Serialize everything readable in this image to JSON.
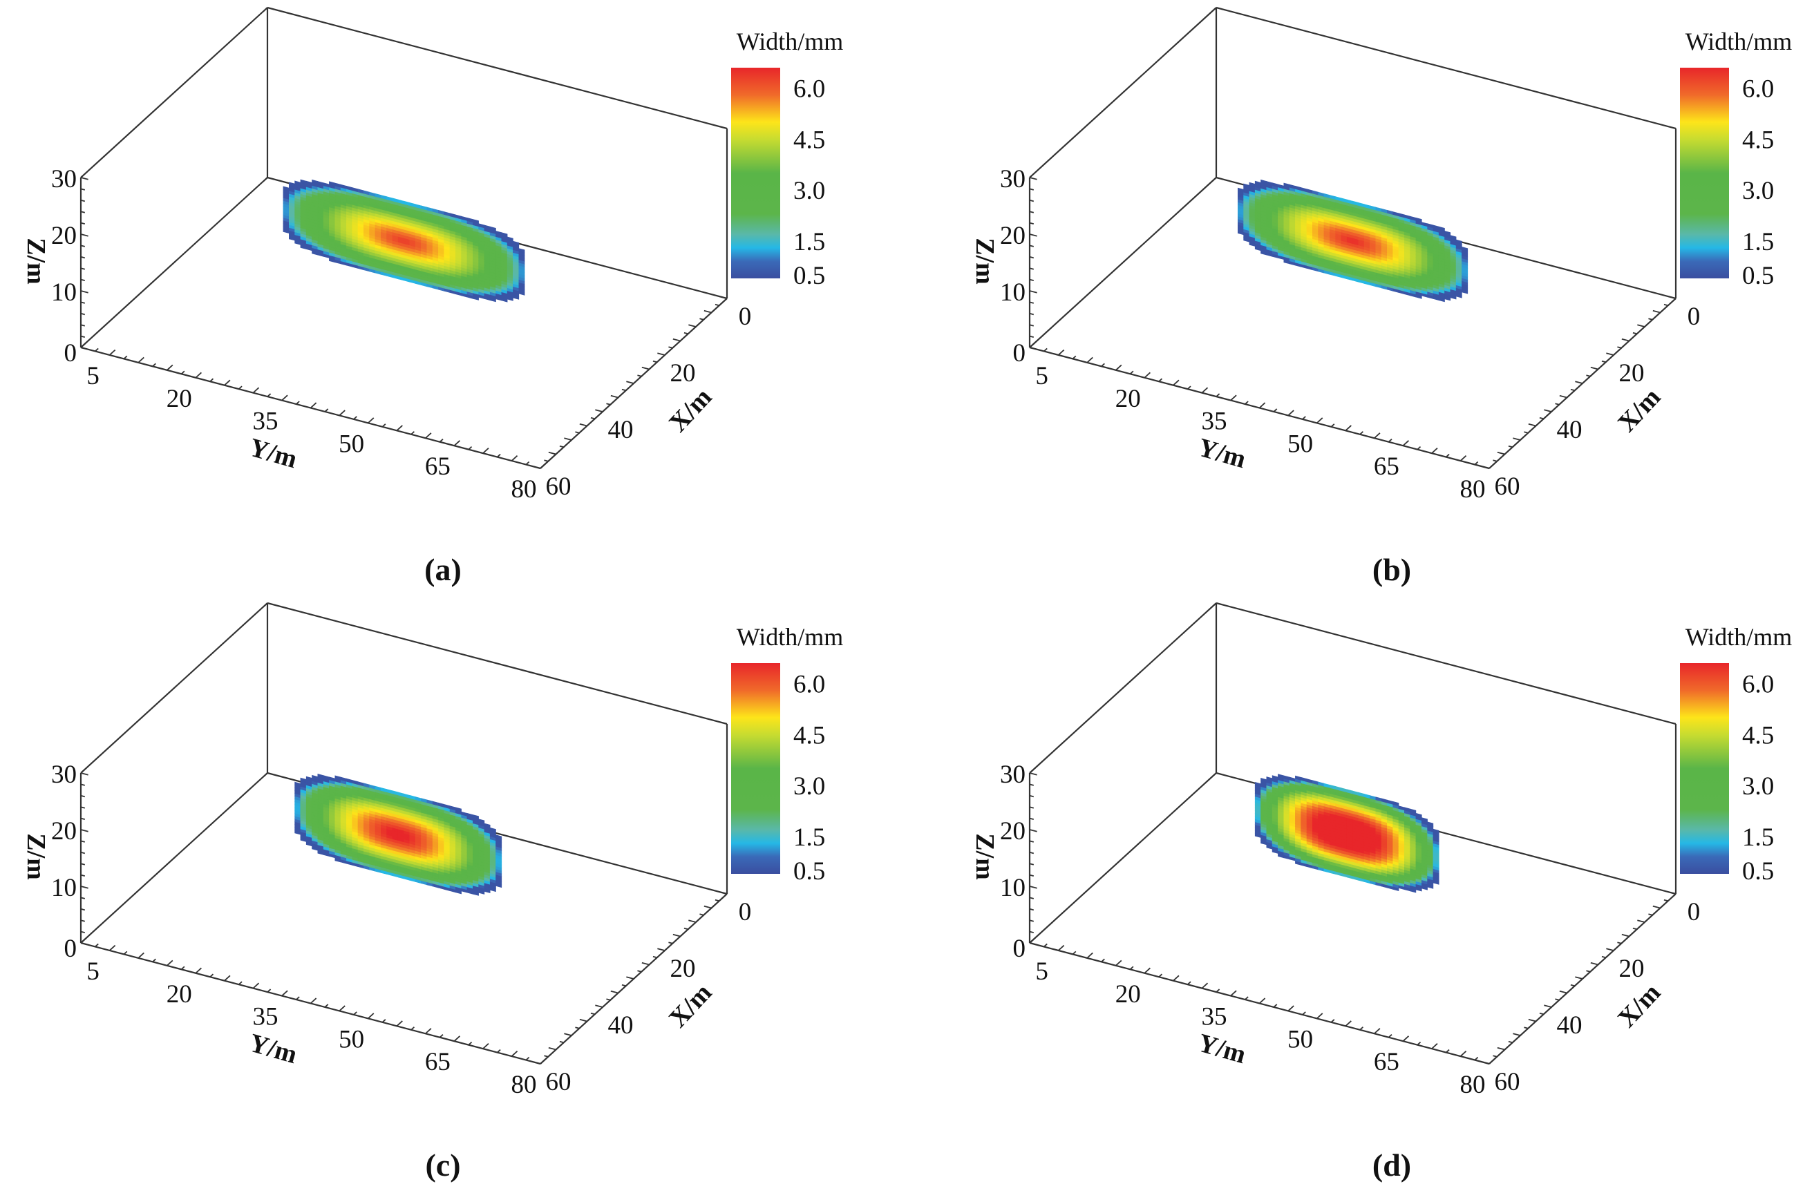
{
  "figure": {
    "colorbar": {
      "title": "Width/mm",
      "ticks": [
        "6.0",
        "4.5",
        "3.0",
        "1.5",
        "0.5"
      ],
      "tick_values": [
        6.0,
        4.5,
        3.0,
        1.5,
        0.5
      ],
      "range": [
        0.4,
        6.6
      ],
      "colormap": [
        {
          "v": 0.4,
          "c": "#3a4ea0"
        },
        {
          "v": 0.9,
          "c": "#3a6ab8"
        },
        {
          "v": 1.3,
          "c": "#25b8e6"
        },
        {
          "v": 1.7,
          "c": "#5ab8a8"
        },
        {
          "v": 2.3,
          "c": "#5cb54a"
        },
        {
          "v": 3.5,
          "c": "#5ab548"
        },
        {
          "v": 4.5,
          "c": "#c8dc30"
        },
        {
          "v": 5.0,
          "c": "#fde51a"
        },
        {
          "v": 5.8,
          "c": "#f06a2a"
        },
        {
          "v": 6.6,
          "c": "#e8262a"
        }
      ]
    },
    "axes": {
      "x_title": "X/m",
      "y_title": "Y/m",
      "z_title": "Z/m",
      "x_ticks": [
        "0",
        "20",
        "40",
        "60"
      ],
      "y_ticks": [
        "5",
        "20",
        "35",
        "50",
        "65",
        "80"
      ],
      "z_ticks": [
        "0",
        "10",
        "20",
        "30"
      ]
    }
  },
  "chart_data": [
    {
      "type": "heatmap",
      "panel": "(a)",
      "caption_letter": "a",
      "xlim": [
        0,
        60
      ],
      "ylim": [
        0,
        80
      ],
      "zlim": [
        0,
        30
      ],
      "xlabel": "X/m",
      "ylabel": "Y/m",
      "zlabel": "Z/m",
      "colorbar_label": "Width/mm",
      "fracture": {
        "x_plane": 30,
        "y_range": [
          19,
          61
        ],
        "z_range": [
          7.5,
          21.5
        ],
        "max_width": 6.4,
        "edge_width": 0.5
      }
    },
    {
      "type": "heatmap",
      "panel": "(b)",
      "caption_letter": "b",
      "xlim": [
        0,
        60
      ],
      "ylim": [
        0,
        80
      ],
      "zlim": [
        0,
        30
      ],
      "xlabel": "X/m",
      "ylabel": "Y/m",
      "zlabel": "Z/m",
      "colorbar_label": "Width/mm",
      "fracture": {
        "x_plane": 30,
        "y_range": [
          20,
          60
        ],
        "z_range": [
          7.5,
          21.5
        ],
        "max_width": 6.6,
        "edge_width": 0.5
      }
    },
    {
      "type": "heatmap",
      "panel": "(c)",
      "caption_letter": "c",
      "xlim": [
        0,
        60
      ],
      "ylim": [
        0,
        80
      ],
      "zlim": [
        0,
        30
      ],
      "xlabel": "X/m",
      "ylabel": "Y/m",
      "zlabel": "Z/m",
      "colorbar_label": "Width/mm",
      "fracture": {
        "x_plane": 30,
        "y_range": [
          21,
          57
        ],
        "z_range": [
          7,
          22
        ],
        "max_width": 7.0,
        "edge_width": 0.5
      }
    },
    {
      "type": "heatmap",
      "panel": "(d)",
      "caption_letter": "d",
      "xlim": [
        0,
        60
      ],
      "ylim": [
        0,
        80
      ],
      "zlim": [
        0,
        30
      ],
      "xlabel": "X/m",
      "ylabel": "Y/m",
      "zlabel": "Z/m",
      "colorbar_label": "Width/mm",
      "fracture": {
        "x_plane": 30,
        "y_range": [
          23,
          55
        ],
        "z_range": [
          7,
          22.5
        ],
        "max_width": 8.4,
        "edge_width": 0.5
      }
    }
  ]
}
